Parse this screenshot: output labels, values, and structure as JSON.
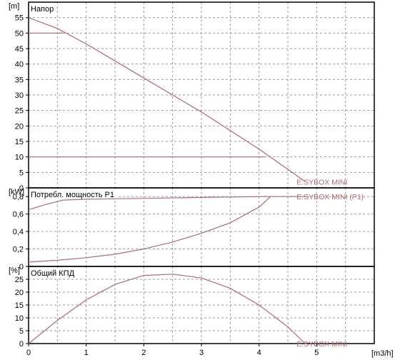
{
  "chart_data": [
    {
      "type": "line",
      "title": "Напор",
      "unit": "[m]",
      "xlim": [
        0,
        6
      ],
      "ylim": [
        0,
        60
      ],
      "yticks": [
        "0",
        "5",
        "10",
        "15",
        "20",
        "25",
        "30",
        "35",
        "40",
        "45",
        "50",
        "55"
      ],
      "series": [
        {
          "name": "E.SYBOX MINI",
          "x": [
            0,
            0.5,
            1.0,
            1.5,
            2.0,
            2.5,
            3.0,
            3.5,
            4.0,
            4.5,
            4.8
          ],
          "y": [
            55,
            51.5,
            46.5,
            41,
            35.5,
            30,
            24.5,
            18.5,
            12.5,
            6,
            2
          ]
        },
        {
          "x": [
            0,
            0.6
          ],
          "y": [
            50,
            50
          ]
        },
        {
          "x": [
            0,
            4.1
          ],
          "y": [
            10,
            10
          ]
        }
      ]
    },
    {
      "type": "line",
      "title": "Потребл. мощность P1",
      "unit": "[kW]",
      "xlim": [
        0,
        6
      ],
      "ylim": [
        0,
        0.9
      ],
      "yticks": [
        "0",
        "0,2",
        "0,4",
        "0,6",
        "0,8"
      ],
      "series": [
        {
          "name": "E.SYBOX MINI (P1)",
          "x": [
            0,
            0.3,
            0.6,
            1.0,
            2.0,
            3.0,
            4.1,
            4.8
          ],
          "y": [
            0.65,
            0.71,
            0.76,
            0.77,
            0.78,
            0.79,
            0.8,
            0.8
          ]
        },
        {
          "x": [
            0,
            0.5,
            1.0,
            1.5,
            2.0,
            2.5,
            3.0,
            3.5,
            4.0,
            4.2
          ],
          "y": [
            0.05,
            0.07,
            0.1,
            0.14,
            0.2,
            0.28,
            0.38,
            0.5,
            0.68,
            0.8
          ]
        }
      ]
    },
    {
      "type": "line",
      "title": "Общий КПД",
      "unit": "[%]",
      "xlim": [
        0,
        6
      ],
      "ylim": [
        0,
        30
      ],
      "yticks": [
        "0",
        "5",
        "10",
        "15",
        "20",
        "25"
      ],
      "xlabel": "[m3/h]",
      "xticks": [
        "0",
        "1",
        "2",
        "3",
        "4",
        "5"
      ],
      "series": [
        {
          "name": "E.SYBOX MINI",
          "x": [
            0,
            0.5,
            1.0,
            1.5,
            2.0,
            2.5,
            3.0,
            3.5,
            4.0,
            4.5,
            4.8
          ],
          "y": [
            0,
            9,
            17,
            23,
            26.5,
            27,
            25.5,
            21.5,
            15,
            6.5,
            0
          ]
        }
      ]
    }
  ]
}
